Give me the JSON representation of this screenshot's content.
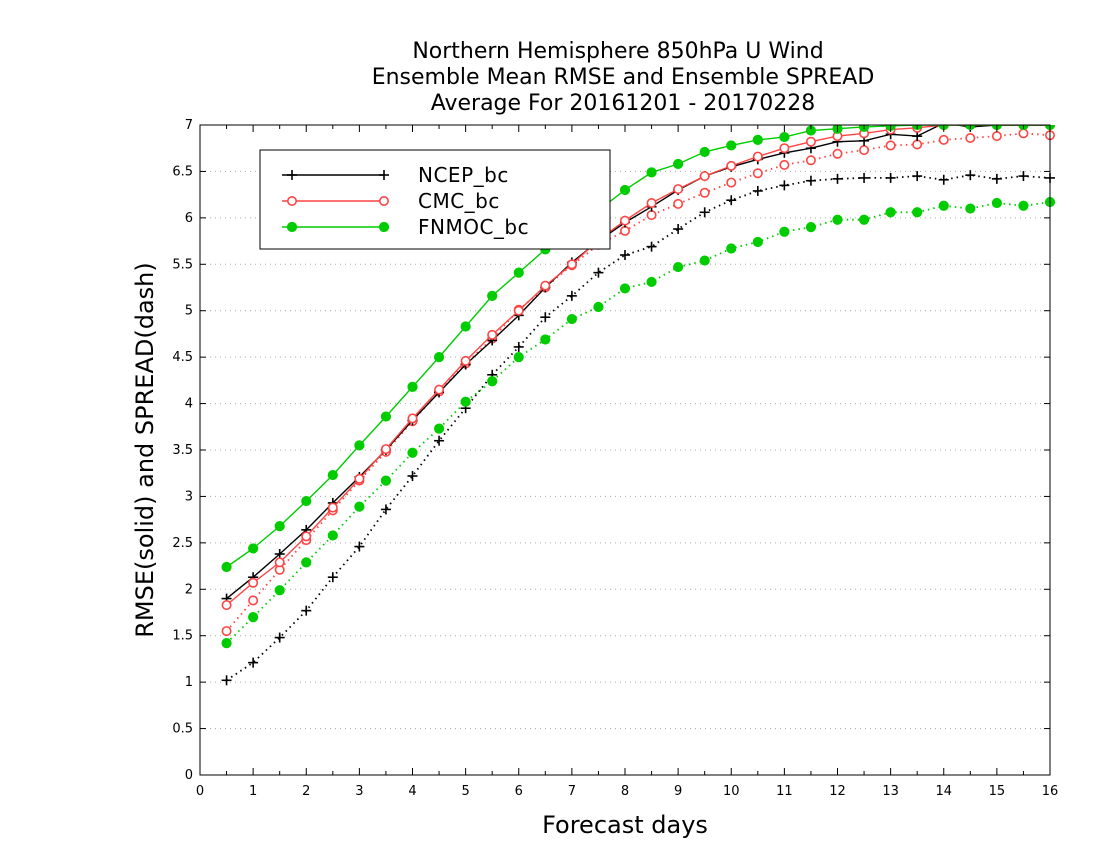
{
  "chart_data": {
    "type": "line",
    "title": [
      "Northern Hemisphere 850hPa U Wind",
      "Ensemble Mean RMSE and Ensemble SPREAD",
      "Average For 20161201 - 20170228"
    ],
    "xlabel": "Forecast days",
    "ylabel": "RMSE(solid) and SPREAD(dash)",
    "xlim": [
      0,
      16
    ],
    "ylim": [
      0,
      7
    ],
    "x_ticks": [
      "0",
      "1",
      "2",
      "3",
      "4",
      "5",
      "6",
      "7",
      "8",
      "9",
      "10",
      "11",
      "12",
      "13",
      "14",
      "15",
      "16"
    ],
    "y_ticks": [
      "0",
      "0.5",
      "1",
      "1.5",
      "2",
      "2.5",
      "3",
      "3.5",
      "4",
      "4.5",
      "5",
      "5.5",
      "6",
      "6.5",
      "7"
    ],
    "grid": "horizontal dotted",
    "legend_position": "top-left",
    "x": [
      0.5,
      1,
      1.5,
      2,
      2.5,
      3,
      3.5,
      4,
      4.5,
      5,
      5.5,
      6,
      6.5,
      7,
      7.5,
      8,
      8.5,
      9,
      9.5,
      10,
      10.5,
      11,
      11.5,
      12,
      12.5,
      13,
      13.5,
      14,
      14.5,
      15,
      15.5,
      16
    ],
    "series": [
      {
        "name": "NCEP_bc",
        "style": "solid",
        "marker": "plus",
        "color": "#000000",
        "values": [
          1.9,
          2.13,
          2.38,
          2.64,
          2.93,
          3.21,
          3.5,
          3.82,
          4.12,
          4.42,
          4.68,
          4.95,
          5.25,
          5.52,
          5.75,
          5.95,
          6.12,
          6.3,
          6.45,
          6.55,
          6.63,
          6.7,
          6.75,
          6.82,
          6.83,
          6.9,
          6.88,
          7.02,
          6.98,
          7.0,
          7.0,
          7.0
        ]
      },
      {
        "name": "CMC_bc",
        "style": "solid",
        "marker": "open-circle",
        "color": "#ff4444",
        "values": [
          1.83,
          2.07,
          2.29,
          2.57,
          2.88,
          3.19,
          3.51,
          3.84,
          4.15,
          4.46,
          4.74,
          5.0,
          5.27,
          5.5,
          5.76,
          5.97,
          6.16,
          6.31,
          6.45,
          6.56,
          6.66,
          6.75,
          6.82,
          6.88,
          6.91,
          6.95,
          6.97,
          7.0,
          7.0,
          7.0,
          7.0,
          7.0
        ]
      },
      {
        "name": "FNMOC_bc",
        "style": "solid",
        "marker": "filled-circle",
        "color": "#00cc00",
        "values": [
          2.24,
          2.44,
          2.68,
          2.95,
          3.23,
          3.55,
          3.86,
          4.18,
          4.5,
          4.83,
          5.16,
          5.41,
          5.66,
          5.87,
          6.08,
          6.3,
          6.49,
          6.58,
          6.71,
          6.78,
          6.84,
          6.87,
          6.94,
          6.96,
          6.98,
          6.99,
          7.0,
          7.0,
          7.0,
          7.0,
          7.0,
          7.0
        ]
      },
      {
        "name": "NCEP_bc",
        "style": "dash",
        "marker": "plus",
        "color": "#000000",
        "values": [
          1.02,
          1.21,
          1.48,
          1.77,
          2.13,
          2.46,
          2.86,
          3.22,
          3.6,
          3.95,
          4.31,
          4.61,
          4.93,
          5.16,
          5.41,
          5.6,
          5.69,
          5.88,
          6.06,
          6.19,
          6.29,
          6.35,
          6.4,
          6.42,
          6.43,
          6.43,
          6.45,
          6.41,
          6.46,
          6.42,
          6.45,
          6.43
        ]
      },
      {
        "name": "CMC_bc",
        "style": "dash",
        "marker": "open-circle",
        "color": "#ff4444",
        "values": [
          1.55,
          1.88,
          2.21,
          2.53,
          2.85,
          3.17,
          3.48,
          3.81,
          4.13,
          4.43,
          4.7,
          5.01,
          5.25,
          5.49,
          5.71,
          5.86,
          6.03,
          6.15,
          6.27,
          6.38,
          6.48,
          6.57,
          6.62,
          6.69,
          6.73,
          6.78,
          6.79,
          6.84,
          6.86,
          6.88,
          6.91,
          6.89
        ]
      },
      {
        "name": "FNMOC_bc",
        "style": "dash",
        "marker": "filled-circle",
        "color": "#00cc00",
        "values": [
          1.42,
          1.7,
          1.99,
          2.29,
          2.58,
          2.89,
          3.17,
          3.47,
          3.73,
          4.02,
          4.24,
          4.5,
          4.69,
          4.91,
          5.04,
          5.24,
          5.31,
          5.47,
          5.54,
          5.67,
          5.74,
          5.85,
          5.9,
          5.98,
          5.98,
          6.06,
          6.06,
          6.13,
          6.1,
          6.16,
          6.13,
          6.17
        ]
      }
    ],
    "legend": [
      "NCEP_bc",
      "CMC_bc",
      "FNMOC_bc"
    ]
  }
}
